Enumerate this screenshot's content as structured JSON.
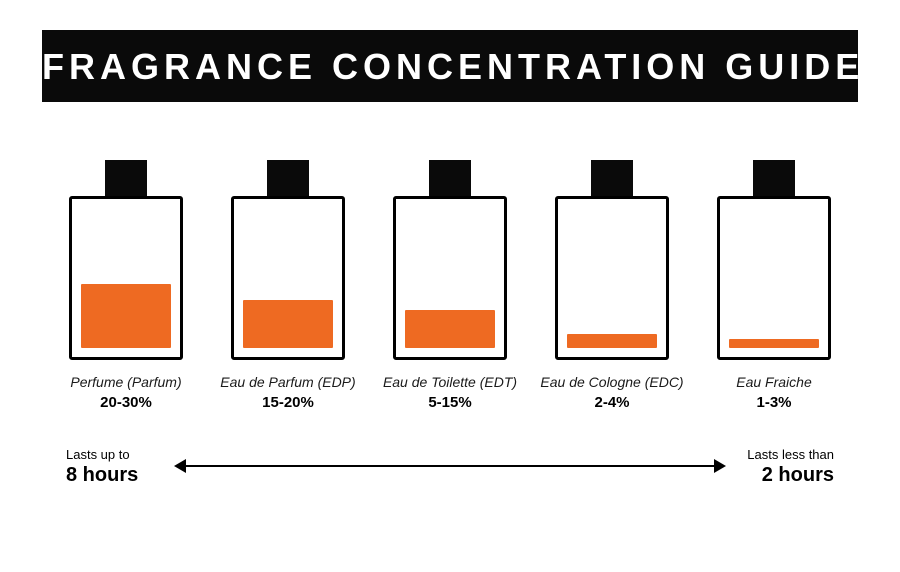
{
  "title": "FRAGRANCE CONCENTRATION GUIDE",
  "colors": {
    "title_bg": "#0a0a0a",
    "title_fg": "#ffffff",
    "bottle_outline": "#000000",
    "cap": "#0a0a0a",
    "fill": "#ee6a22",
    "background": "#ffffff",
    "text": "#000000"
  },
  "bottle": {
    "outer_w": 114,
    "outer_h": 164,
    "border_w": 3,
    "fill_inset": 9
  },
  "items": [
    {
      "name": "Perfume (Parfum)",
      "percent": "20-30%",
      "fill_h": 64
    },
    {
      "name": "Eau de Parfum (EDP)",
      "percent": "15-20%",
      "fill_h": 48
    },
    {
      "name": "Eau de Toilette (EDT)",
      "percent": "5-15%",
      "fill_h": 38
    },
    {
      "name": "Eau de Cologne (EDC)",
      "percent": "2-4%",
      "fill_h": 14
    },
    {
      "name": "Eau Fraiche",
      "percent": "1-3%",
      "fill_h": 9
    }
  ],
  "scale": {
    "left_small": "Lasts up to",
    "left_big": "8 hours",
    "right_small": "Lasts less than",
    "right_big": "2 hours"
  }
}
